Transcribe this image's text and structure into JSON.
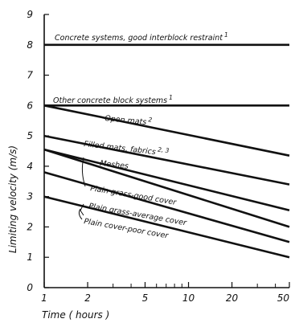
{
  "chart_data": {
    "type": "line",
    "title": "",
    "xlabel": "Time ( hours )",
    "ylabel": "Limiting velocity (m/s)",
    "xscale": "log",
    "xlim": [
      1,
      50
    ],
    "ylim": [
      0,
      9
    ],
    "x_ticks": [
      1,
      2,
      5,
      10,
      20,
      50
    ],
    "x_minor_ticks": [
      3,
      4,
      6,
      7,
      8,
      9,
      30,
      40
    ],
    "y_ticks": [
      0,
      1,
      2,
      3,
      4,
      5,
      6,
      7,
      8,
      9
    ],
    "grid": false,
    "series": [
      {
        "name": "Concrete systems, good interblock restraint",
        "footnote": "1",
        "x": [
          1,
          50
        ],
        "y": [
          8.0,
          8.0
        ]
      },
      {
        "name": "Other concrete block systems",
        "footnote": "1",
        "x": [
          1,
          50
        ],
        "y": [
          6.0,
          6.0
        ]
      },
      {
        "name": "Open mats",
        "footnote": "2",
        "x": [
          1,
          50
        ],
        "y": [
          6.0,
          4.35
        ]
      },
      {
        "name": "Filled mats, fabrics",
        "footnote": "2, 3",
        "x": [
          1,
          50
        ],
        "y": [
          5.0,
          3.4
        ]
      },
      {
        "name": "Meshes",
        "x": [
          1,
          50
        ],
        "y": [
          4.55,
          2.55
        ]
      },
      {
        "name": "Plain grass-good cover",
        "x": [
          1,
          50
        ],
        "y": [
          4.55,
          2.0
        ]
      },
      {
        "name": "Plain grass-average cover",
        "x": [
          1,
          50
        ],
        "y": [
          3.8,
          1.5
        ]
      },
      {
        "name": "Plain cover-poor cover",
        "x": [
          1,
          50
        ],
        "y": [
          3.0,
          1.0
        ]
      }
    ],
    "annotations": [
      {
        "key": "concrete_good",
        "text": "Concrete systems, good interblock restraint",
        "sup": "1"
      },
      {
        "key": "other_block",
        "text": "Other concrete block systems",
        "sup": "1"
      },
      {
        "key": "open_mats",
        "text": "Open mats",
        "sup": "2"
      },
      {
        "key": "filled_mats",
        "text": "Filled mats, fabrics",
        "sup": "2, 3"
      },
      {
        "key": "meshes",
        "text": "Meshes",
        "sup": ""
      },
      {
        "key": "grass_good",
        "text": "Plain grass-good cover",
        "sup": ""
      },
      {
        "key": "grass_avg",
        "text": "Plain grass-average cover",
        "sup": ""
      },
      {
        "key": "plain_poor",
        "text": "Plain cover-poor cover",
        "sup": ""
      }
    ]
  }
}
